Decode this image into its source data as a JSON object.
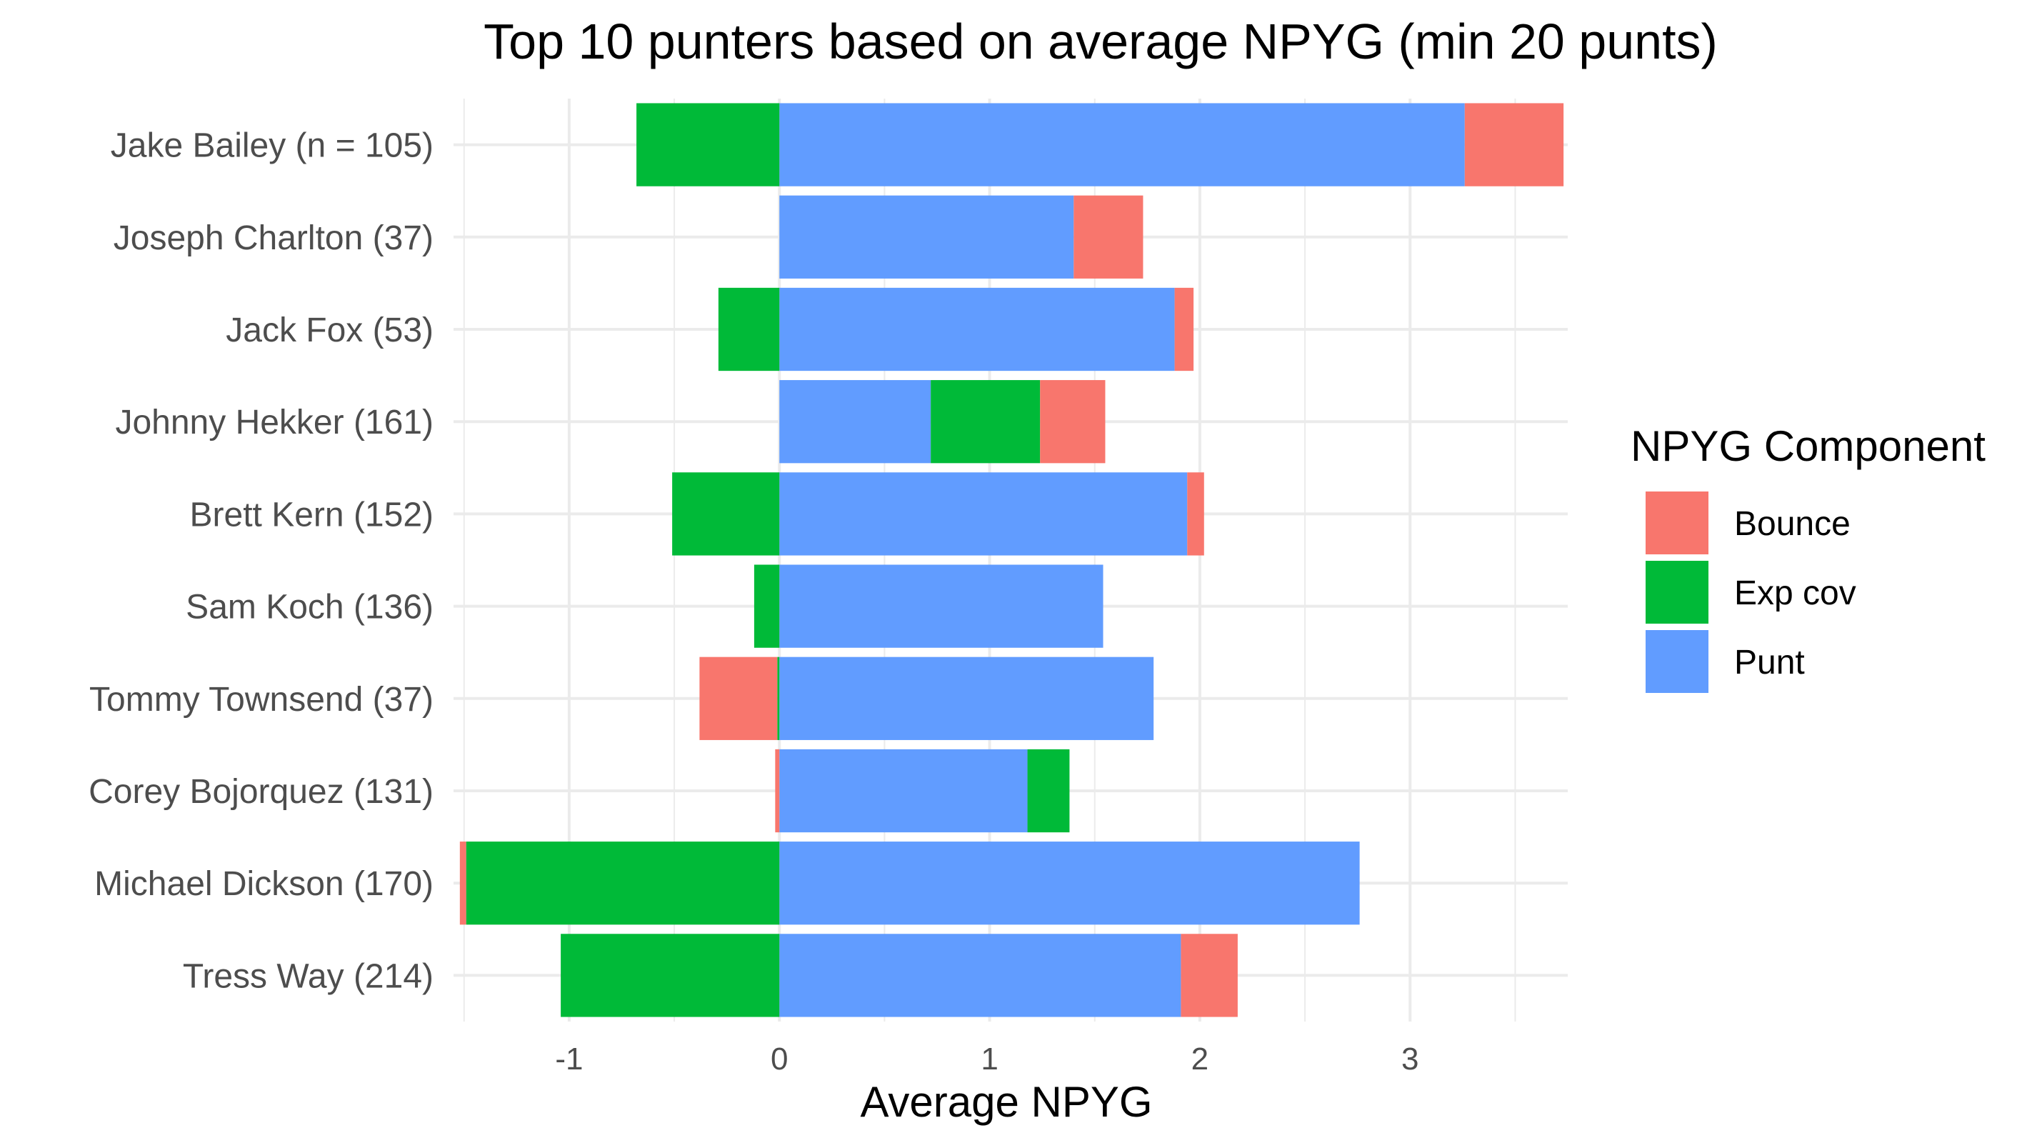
{
  "chart_data": {
    "type": "bar",
    "orientation": "horizontal",
    "stacked": "diverging",
    "title": "Top 10 punters based on average NPYG (min 20 punts)",
    "xlabel": "Average NPYG",
    "ylabel": "",
    "xlim": [
      -1.55,
      3.75
    ],
    "xticks": [
      "-1",
      "0",
      "1",
      "2",
      "3"
    ],
    "grid": true,
    "legend_title": "NPYG Component",
    "legend_position": "right",
    "categories": [
      "Jake Bailey (n = 105)",
      "Joseph Charlton (37)",
      "Jack Fox (53)",
      "Johnny Hekker (161)",
      "Brett Kern (152)",
      "Sam Koch (136)",
      "Tommy Townsend (37)",
      "Corey Bojorquez (131)",
      "Michael Dickson (170)",
      "Tress Way (214)"
    ],
    "series": [
      {
        "name": "Bounce",
        "color": "#F8766D",
        "values": [
          0.47,
          0.33,
          0.09,
          0.31,
          0.08,
          0.0,
          -0.37,
          -0.02,
          -0.03,
          0.27
        ]
      },
      {
        "name": "Exp cov",
        "color": "#00BA38",
        "values": [
          -0.68,
          0.0,
          -0.29,
          0.52,
          -0.51,
          -0.12,
          -0.01,
          0.2,
          -1.49,
          -1.04
        ]
      },
      {
        "name": "Punt",
        "color": "#619CFF",
        "values": [
          3.26,
          1.4,
          1.88,
          0.72,
          1.94,
          1.54,
          1.78,
          1.18,
          2.76,
          1.91
        ]
      }
    ],
    "stack_order": [
      "Punt",
      "Exp cov",
      "Bounce"
    ]
  }
}
